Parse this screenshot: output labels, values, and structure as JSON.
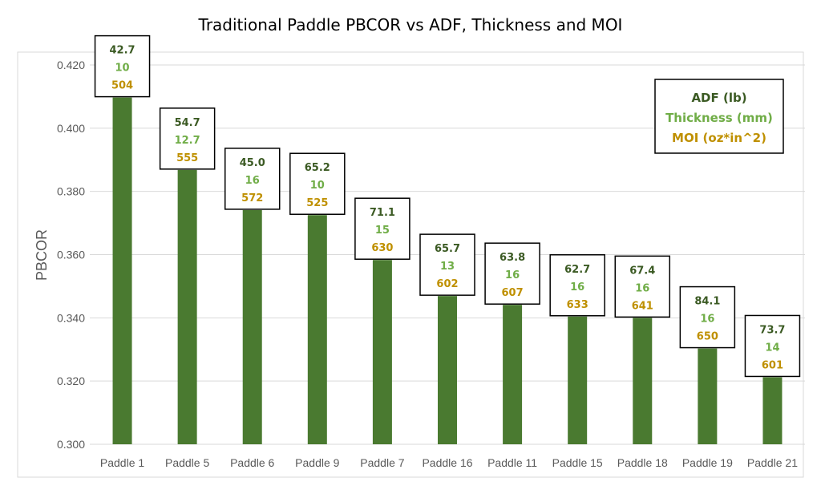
{
  "chart_data": {
    "type": "bar",
    "title": "Traditional Paddle PBCOR vs ADF, Thickness and MOI",
    "xlabel": "",
    "ylabel": "PBCOR",
    "ylim": [
      0.3,
      0.42
    ],
    "yticks": [
      "0.300",
      "0.320",
      "0.340",
      "0.360",
      "0.380",
      "0.400",
      "0.420"
    ],
    "grid": true,
    "legend_position": "top-right",
    "categories": [
      "Paddle 1",
      "Paddle 5",
      "Paddle 6",
      "Paddle 9",
      "Paddle 7",
      "Paddle 16",
      "Paddle 11",
      "Paddle 15",
      "Paddle 18",
      "Paddle 19",
      "Paddle 21"
    ],
    "series": [
      {
        "values": [
          0.4097,
          0.3868,
          0.3741,
          0.3725,
          0.3583,
          0.3469,
          0.3441,
          0.3404,
          0.34,
          0.3303,
          0.3212
        ]
      }
    ],
    "annotations": {
      "adf": [
        "42.7",
        "54.7",
        "45.0",
        "65.2",
        "71.1",
        "65.7",
        "63.8",
        "62.7",
        "67.4",
        "84.1",
        "73.7"
      ],
      "thickness": [
        "10",
        "12.7",
        "16",
        "10",
        "15",
        "13",
        "16",
        "16",
        "16",
        "16",
        "14"
      ],
      "moi": [
        "504",
        "555",
        "572",
        "525",
        "630",
        "602",
        "607",
        "633",
        "641",
        "650",
        "601"
      ]
    },
    "legend": {
      "adf_label": "ADF (lb)",
      "thickness_label": "Thickness (mm)",
      "moi_label": "MOI (oz*in^2)"
    },
    "colors": {
      "bar": "#4a7a30",
      "adf": "#3b5a23",
      "thickness": "#70ad47",
      "moi": "#bf9000",
      "grid": "#d9d9d9",
      "axis_text": "#595959"
    }
  }
}
